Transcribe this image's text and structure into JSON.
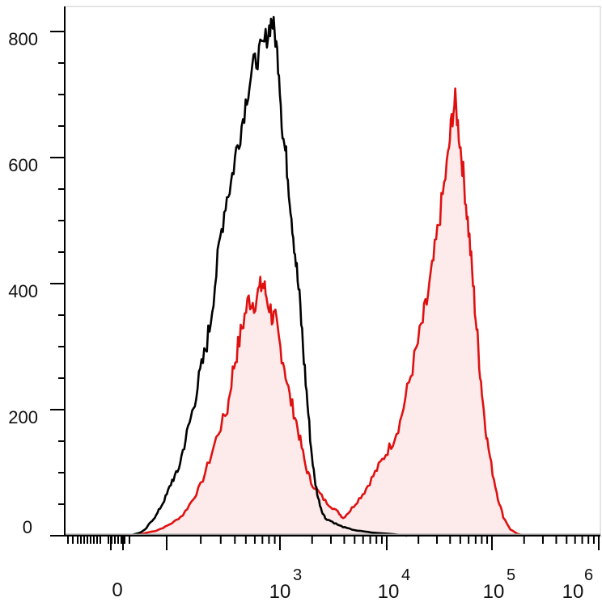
{
  "chart_data": {
    "type": "area",
    "x_scale": "biexponential",
    "y_ticks": [
      0,
      200,
      400,
      600,
      800
    ],
    "y_tick_labels": [
      "0",
      "200",
      "400",
      "600",
      "800"
    ],
    "x_tick_labels": [
      {
        "base": "0",
        "exp": ""
      },
      {
        "base": "10",
        "exp": "3"
      },
      {
        "base": "10",
        "exp": "4"
      },
      {
        "base": "10",
        "exp": "5"
      },
      {
        "base": "10",
        "exp": "6"
      }
    ],
    "ylim": [
      0,
      800
    ],
    "series": [
      {
        "color": "#000000",
        "fill": "none",
        "points": [
          [
            0.0,
            0
          ],
          [
            0.06,
            5
          ],
          [
            0.09,
            10
          ],
          [
            0.12,
            22
          ],
          [
            0.15,
            32
          ],
          [
            0.18,
            48
          ],
          [
            0.21,
            65
          ],
          [
            0.24,
            88
          ],
          [
            0.27,
            100
          ],
          [
            0.3,
            135
          ],
          [
            0.33,
            170
          ],
          [
            0.36,
            205
          ],
          [
            0.39,
            248
          ],
          [
            0.42,
            285
          ],
          [
            0.45,
            330
          ],
          [
            0.48,
            400
          ],
          [
            0.51,
            470
          ],
          [
            0.54,
            530
          ],
          [
            0.57,
            560
          ],
          [
            0.6,
            610
          ],
          [
            0.63,
            650
          ],
          [
            0.66,
            700
          ],
          [
            0.69,
            740
          ],
          [
            0.72,
            760
          ],
          [
            0.75,
            775
          ],
          [
            0.78,
            800
          ],
          [
            0.8,
            820
          ],
          [
            0.82,
            790
          ],
          [
            0.84,
            740
          ],
          [
            0.86,
            640
          ],
          [
            0.88,
            600
          ],
          [
            0.9,
            540
          ],
          [
            0.92,
            480
          ],
          [
            0.94,
            420
          ],
          [
            0.96,
            360
          ],
          [
            0.98,
            280
          ],
          [
            1.0,
            210
          ],
          [
            1.02,
            140
          ],
          [
            1.04,
            90
          ],
          [
            1.06,
            60
          ],
          [
            1.08,
            40
          ],
          [
            1.1,
            28
          ],
          [
            1.14,
            22
          ],
          [
            1.18,
            16
          ],
          [
            1.22,
            12
          ],
          [
            1.28,
            8
          ],
          [
            1.36,
            5
          ],
          [
            1.46,
            3
          ],
          [
            1.56,
            0
          ]
        ]
      },
      {
        "color": "#e01010",
        "fill": "#fdeaea",
        "points": [
          [
            0.0,
            0
          ],
          [
            0.06,
            2
          ],
          [
            0.1,
            5
          ],
          [
            0.15,
            8
          ],
          [
            0.2,
            14
          ],
          [
            0.25,
            22
          ],
          [
            0.3,
            33
          ],
          [
            0.35,
            55
          ],
          [
            0.4,
            80
          ],
          [
            0.45,
            120
          ],
          [
            0.5,
            165
          ],
          [
            0.55,
            200
          ],
          [
            0.58,
            260
          ],
          [
            0.61,
            300
          ],
          [
            0.64,
            340
          ],
          [
            0.67,
            375
          ],
          [
            0.7,
            370
          ],
          [
            0.73,
            390
          ],
          [
            0.75,
            400
          ],
          [
            0.77,
            380
          ],
          [
            0.8,
            350
          ],
          [
            0.82,
            340
          ],
          [
            0.84,
            310
          ],
          [
            0.87,
            270
          ],
          [
            0.9,
            220
          ],
          [
            0.93,
            190
          ],
          [
            0.96,
            150
          ],
          [
            0.99,
            110
          ],
          [
            1.02,
            85
          ],
          [
            1.06,
            70
          ],
          [
            1.1,
            55
          ],
          [
            1.14,
            45
          ],
          [
            1.18,
            35
          ],
          [
            1.2,
            28
          ],
          [
            1.24,
            40
          ],
          [
            1.28,
            55
          ],
          [
            1.32,
            70
          ],
          [
            1.36,
            90
          ],
          [
            1.4,
            110
          ],
          [
            1.44,
            130
          ],
          [
            1.48,
            150
          ],
          [
            1.52,
            180
          ],
          [
            1.56,
            230
          ],
          [
            1.6,
            280
          ],
          [
            1.64,
            330
          ],
          [
            1.67,
            370
          ],
          [
            1.7,
            420
          ],
          [
            1.73,
            480
          ],
          [
            1.76,
            540
          ],
          [
            1.79,
            600
          ],
          [
            1.81,
            660
          ],
          [
            1.83,
            690
          ],
          [
            1.85,
            640
          ],
          [
            1.87,
            590
          ],
          [
            1.89,
            530
          ],
          [
            1.91,
            470
          ],
          [
            1.93,
            400
          ],
          [
            1.95,
            330
          ],
          [
            1.97,
            260
          ],
          [
            1.99,
            200
          ],
          [
            2.01,
            150
          ],
          [
            2.04,
            100
          ],
          [
            2.07,
            60
          ],
          [
            2.1,
            30
          ],
          [
            2.14,
            10
          ],
          [
            2.18,
            3
          ],
          [
            2.22,
            0
          ]
        ]
      }
    ]
  }
}
